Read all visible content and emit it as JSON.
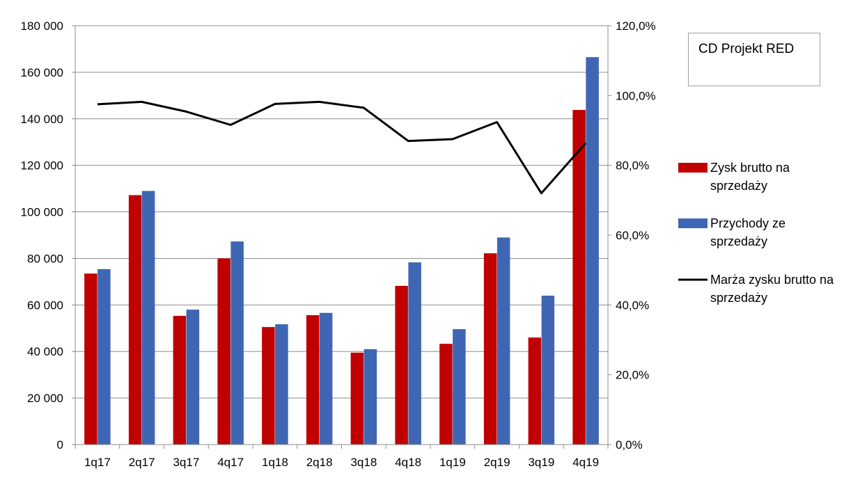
{
  "title": "CD Projekt RED",
  "colors": {
    "gross_profit": "#c00000",
    "revenue": "#3f66b3",
    "margin": "#000000",
    "grid": "#8c8c8c"
  },
  "chart_data": {
    "type": "bar",
    "title": "CD Projekt RED",
    "categories": [
      "1q17",
      "2q17",
      "3q17",
      "4q17",
      "1q18",
      "2q18",
      "3q18",
      "4q18",
      "1q19",
      "2q19",
      "3q19",
      "4q19"
    ],
    "series": [
      {
        "name": "Zysk brutto na sprzedaży",
        "type": "bar",
        "axis": "left",
        "values": [
          73500,
          107200,
          55300,
          80000,
          50500,
          55600,
          39500,
          68200,
          43300,
          82200,
          46000,
          143800
        ]
      },
      {
        "name": "Przychody ze sprzedaży",
        "type": "bar",
        "axis": "left",
        "values": [
          75400,
          109000,
          58000,
          87300,
          51700,
          56600,
          41000,
          78300,
          49600,
          89000,
          64000,
          166500
        ]
      },
      {
        "name": "Marża zysku brutto na sprzedaży",
        "type": "line",
        "axis": "right",
        "values": [
          97.5,
          98.2,
          95.4,
          91.6,
          97.6,
          98.2,
          96.5,
          87.0,
          87.5,
          92.4,
          72.0,
          86.4
        ]
      }
    ],
    "y_left": {
      "ylim": [
        0,
        180000
      ],
      "ticks": [
        "0",
        "20 000",
        "40 000",
        "60 000",
        "80 000",
        "100 000",
        "120 000",
        "140 000",
        "160 000",
        "180 000"
      ]
    },
    "y_right": {
      "ylim": [
        0,
        120
      ],
      "ticks": [
        "0,0%",
        "20,0%",
        "40,0%",
        "60,0%",
        "80,0%",
        "100,0%",
        "120,0%"
      ]
    },
    "grid": true,
    "legend": "right",
    "legend_lines": [
      [
        "Zysk brutto na",
        "sprzedaży"
      ],
      [
        "Przychody ze",
        "sprzedaży"
      ],
      [
        "Marża zysku brutto na",
        "sprzedaży"
      ]
    ]
  }
}
